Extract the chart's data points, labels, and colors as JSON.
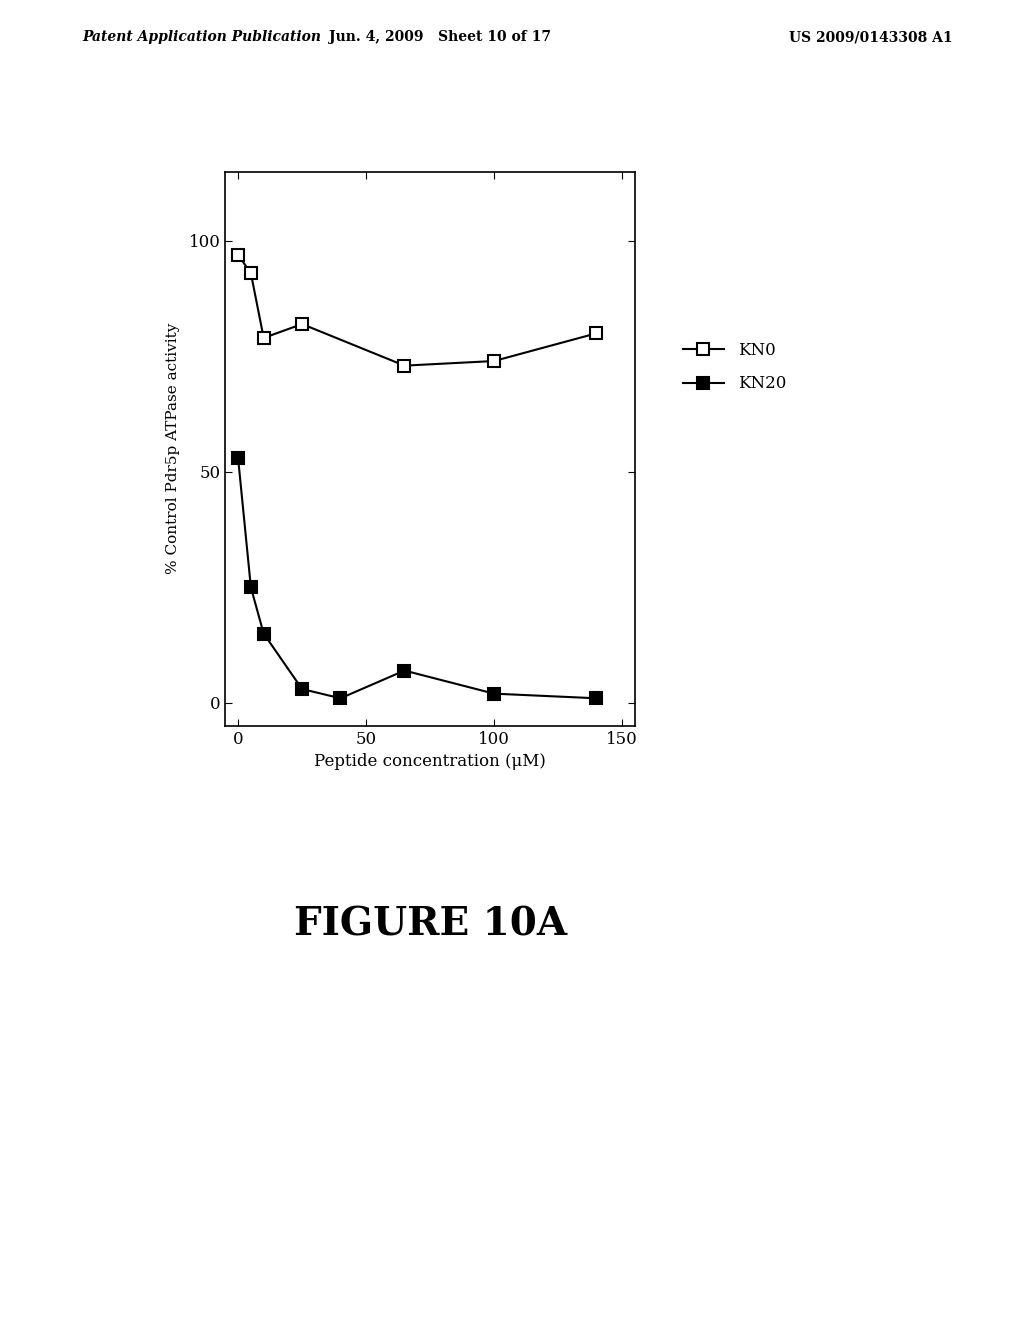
{
  "KN0_x": [
    0,
    5,
    10,
    25,
    65,
    100,
    140
  ],
  "KN0_y": [
    97,
    93,
    79,
    82,
    73,
    74,
    80
  ],
  "KN20_x": [
    0,
    5,
    10,
    25,
    40,
    65,
    100,
    140
  ],
  "KN20_y": [
    53,
    25,
    15,
    3,
    1,
    7,
    2,
    1
  ],
  "xlabel": "Peptide concentration (μM)",
  "ylabel": "% Control Pdr5p ATPase activity",
  "legend_KN0": "KN0",
  "legend_KN20": "KN20",
  "figure_title": "FIGURE 10A",
  "xlim": [
    -5,
    155
  ],
  "ylim": [
    -5,
    115
  ],
  "xticks": [
    0,
    50,
    100,
    150
  ],
  "yticks": [
    0,
    50,
    100
  ],
  "header_left": "Patent Application Publication",
  "header_center": "Jun. 4, 2009   Sheet 10 of 17",
  "header_right": "US 2009/0143308 A1"
}
